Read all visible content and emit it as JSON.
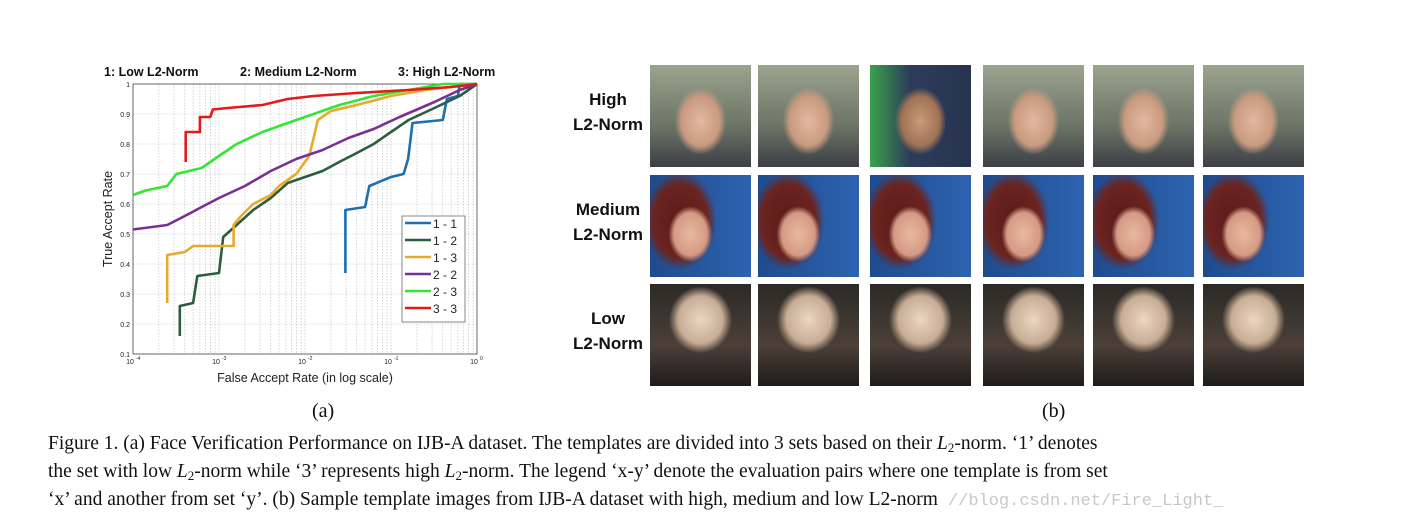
{
  "panel_a": {
    "label": "(a)",
    "chart_data": {
      "type": "line",
      "title_labels": [
        "1: Low L2-Norm",
        "2: Medium L2-Norm",
        "3: High L2-Norm"
      ],
      "xlabel": "False Accept Rate (in log scale)",
      "ylabel": "True Accept Rate",
      "xscale": "log",
      "xlim": [
        0.0001,
        1
      ],
      "ylim": [
        0.1,
        1
      ],
      "xticks": [
        0.0001,
        0.001,
        0.01,
        0.1,
        1
      ],
      "xtick_labels": [
        "10-4",
        "10-3",
        "10-2",
        "10-1",
        "100"
      ],
      "yticks": [
        0.1,
        0.2,
        0.3,
        0.4,
        0.5,
        0.6,
        0.7,
        0.8,
        0.9,
        1
      ],
      "ytick_labels": [
        "0.1",
        "0.2",
        "0.3",
        "0.4",
        "0.5",
        "0.6",
        "0.7",
        "0.8",
        "0.9",
        "1"
      ],
      "grid": true,
      "legend_position": "bottom-right",
      "series": [
        {
          "name": "1 - 1",
          "color": "#1f6fb0",
          "points": [
            [
              0.0295,
              0.37
            ],
            [
              0.0295,
              0.58
            ],
            [
              0.05,
              0.59
            ],
            [
              0.056,
              0.66
            ],
            [
              0.1,
              0.69
            ],
            [
              0.14,
              0.7
            ],
            [
              0.158,
              0.75
            ],
            [
              0.178,
              0.87
            ],
            [
              0.4,
              0.88
            ],
            [
              0.447,
              0.95
            ],
            [
              0.6,
              0.96
            ],
            [
              0.63,
              1.0
            ],
            [
              1,
              1
            ]
          ]
        },
        {
          "name": "1 - 2",
          "color": "#2b5e3e",
          "points": [
            [
              0.00035,
              0.16
            ],
            [
              0.00035,
              0.26
            ],
            [
              0.0005,
              0.27
            ],
            [
              0.00056,
              0.36
            ],
            [
              0.001,
              0.37
            ],
            [
              0.00112,
              0.49
            ],
            [
              0.0016,
              0.53
            ],
            [
              0.0025,
              0.58
            ],
            [
              0.004,
              0.62
            ],
            [
              0.0063,
              0.67
            ],
            [
              0.01,
              0.69
            ],
            [
              0.016,
              0.71
            ],
            [
              0.025,
              0.74
            ],
            [
              0.04,
              0.77
            ],
            [
              0.063,
              0.8
            ],
            [
              0.1,
              0.84
            ],
            [
              0.16,
              0.88
            ],
            [
              0.32,
              0.92
            ],
            [
              0.63,
              0.96
            ],
            [
              1,
              1
            ]
          ]
        },
        {
          "name": "1 - 3",
          "color": "#e8aa2c",
          "points": [
            [
              0.00025,
              0.27
            ],
            [
              0.00025,
              0.43
            ],
            [
              0.0004,
              0.44
            ],
            [
              0.0005,
              0.46
            ],
            [
              0.00148,
              0.46
            ],
            [
              0.00148,
              0.53
            ],
            [
              0.0018,
              0.56
            ],
            [
              0.0025,
              0.6
            ],
            [
              0.004,
              0.63
            ],
            [
              0.005,
              0.66
            ],
            [
              0.0079,
              0.7
            ],
            [
              0.0112,
              0.76
            ],
            [
              0.0126,
              0.82
            ],
            [
              0.0141,
              0.88
            ],
            [
              0.02,
              0.91
            ],
            [
              0.04,
              0.93
            ],
            [
              0.1,
              0.96
            ],
            [
              0.25,
              0.98
            ],
            [
              0.5,
              0.99
            ],
            [
              1,
              1
            ]
          ]
        },
        {
          "name": "2 - 2",
          "color": "#7a2f93",
          "points": [
            [
              0.0001,
              0.515
            ],
            [
              0.00025,
              0.53
            ],
            [
              0.0004,
              0.56
            ],
            [
              0.00063,
              0.59
            ],
            [
              0.001,
              0.62
            ],
            [
              0.002,
              0.66
            ],
            [
              0.004,
              0.71
            ],
            [
              0.0079,
              0.75
            ],
            [
              0.016,
              0.78
            ],
            [
              0.032,
              0.82
            ],
            [
              0.063,
              0.85
            ],
            [
              0.126,
              0.89
            ],
            [
              0.32,
              0.94
            ],
            [
              0.63,
              0.98
            ],
            [
              1,
              1
            ]
          ]
        },
        {
          "name": "2 - 3",
          "color": "#33e633",
          "points": [
            [
              0.0001,
              0.63
            ],
            [
              0.00014,
              0.645
            ],
            [
              0.00025,
              0.66
            ],
            [
              0.00032,
              0.7
            ],
            [
              0.00063,
              0.72
            ],
            [
              0.001,
              0.76
            ],
            [
              0.0016,
              0.8
            ],
            [
              0.0032,
              0.84
            ],
            [
              0.0063,
              0.87
            ],
            [
              0.0126,
              0.9
            ],
            [
              0.025,
              0.93
            ],
            [
              0.063,
              0.96
            ],
            [
              0.16,
              0.98
            ],
            [
              0.4,
              1.0
            ],
            [
              1,
              1
            ]
          ]
        },
        {
          "name": "3 - 3",
          "color": "#e31a1a",
          "points": [
            [
              0.00041,
              0.74
            ],
            [
              0.00041,
              0.84
            ],
            [
              0.0006,
              0.84
            ],
            [
              0.0006,
              0.89
            ],
            [
              0.00079,
              0.89
            ],
            [
              0.00085,
              0.915
            ],
            [
              0.00126,
              0.92
            ],
            [
              0.0032,
              0.93
            ],
            [
              0.0063,
              0.95
            ],
            [
              0.0126,
              0.96
            ],
            [
              0.04,
              0.97
            ],
            [
              0.16,
              0.98
            ],
            [
              0.5,
              0.99
            ],
            [
              1,
              1
            ]
          ]
        }
      ]
    }
  },
  "panel_b": {
    "label": "(b)",
    "rows": [
      {
        "label_lines": [
          "High",
          "L2-Norm"
        ]
      },
      {
        "label_lines": [
          "Medium",
          "L2-Norm"
        ]
      },
      {
        "label_lines": [
          "Low",
          "L2-Norm"
        ]
      }
    ]
  },
  "caption": {
    "lines": [
      [
        {
          "t": "Figure 1. (a) Face Verification Performance on IJB-A dataset. The templates are divided into 3 sets based on their "
        },
        {
          "t": "L",
          "i": true
        },
        {
          "t": "2",
          "sub": true
        },
        {
          "t": "-norm. ‘1’ denotes"
        }
      ],
      [
        {
          "t": "the set with low "
        },
        {
          "t": "L",
          "i": true
        },
        {
          "t": "2",
          "sub": true
        },
        {
          "t": "-norm while ‘3’ represents high "
        },
        {
          "t": "L",
          "i": true
        },
        {
          "t": "2",
          "sub": true
        },
        {
          "t": "-norm. The legend ‘x-y’ denote the evaluation pairs where one template is from set"
        }
      ],
      [
        {
          "t": "‘x’ and another from set ‘y’. (b) Sample template images from IJB-A dataset with high, medium and low L2-norm"
        }
      ]
    ],
    "watermark": "//blog.csdn.net/Fire_Light_"
  }
}
